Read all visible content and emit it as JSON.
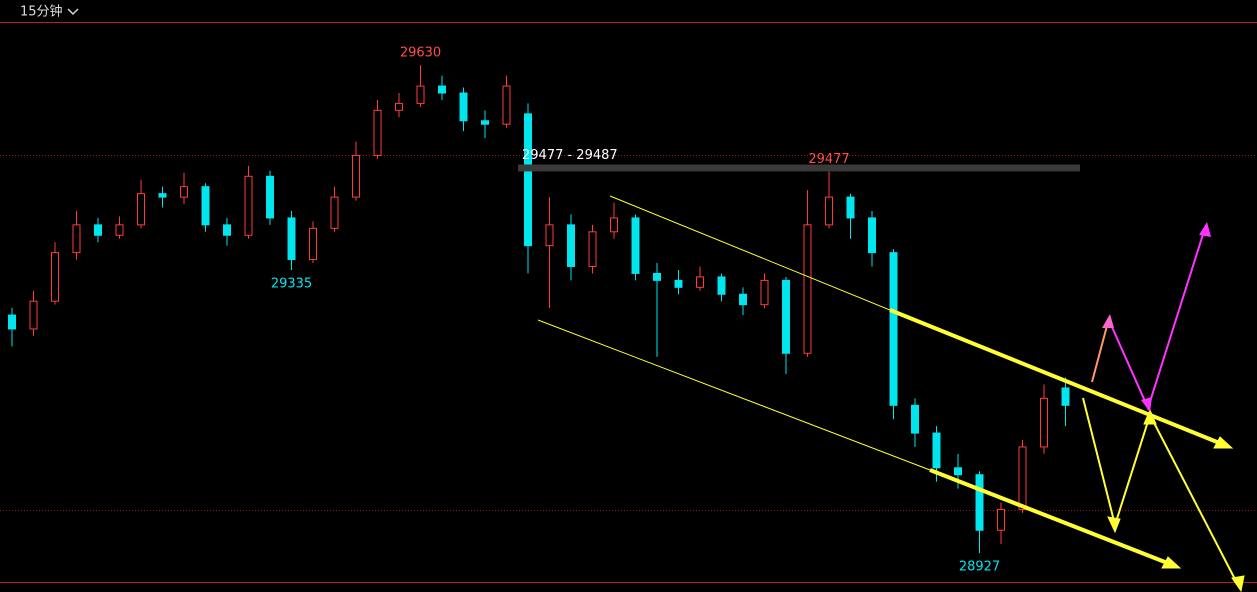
{
  "header": {
    "period": "15分钟"
  },
  "chart_data": {
    "type": "candlestick",
    "up_color": "#ff3b3b",
    "down_color": "#00e5ee",
    "ylim": [
      28871,
      29724
    ],
    "open": [
      29270,
      29250,
      29290,
      29360,
      29400,
      29385,
      29400,
      29445,
      29440,
      29455,
      29400,
      29385,
      29470,
      29410,
      29350,
      29395,
      29440,
      29500,
      29565,
      29575,
      29600,
      29590,
      29550,
      29545,
      29560,
      29370,
      29400,
      29340,
      29390,
      29410,
      29330,
      29320,
      29310,
      29325,
      29300,
      29285,
      29320,
      29215,
      29400,
      29440,
      29410,
      29360,
      29140,
      29100,
      29050,
      29040,
      28960,
      28990,
      29080,
      29165
    ],
    "high": [
      29280,
      29305,
      29375,
      29420,
      29410,
      29412,
      29465,
      29455,
      29475,
      29460,
      29410,
      29485,
      29478,
      29420,
      29405,
      29455,
      29520,
      29580,
      29590,
      29630,
      29615,
      29598,
      29565,
      29615,
      29575,
      29440,
      29415,
      29400,
      29432,
      29415,
      29345,
      29335,
      29340,
      29330,
      29310,
      29330,
      29325,
      29450,
      29477,
      29445,
      29420,
      29365,
      29150,
      29110,
      29070,
      29045,
      29000,
      29090,
      29170,
      29180
    ],
    "low": [
      29225,
      29240,
      29285,
      29350,
      29375,
      29380,
      29395,
      29425,
      29430,
      29390,
      29370,
      29380,
      29400,
      29335,
      29345,
      29390,
      29435,
      29495,
      29555,
      29570,
      29580,
      29535,
      29525,
      29540,
      29330,
      29280,
      29320,
      29330,
      29380,
      29320,
      29210,
      29300,
      29305,
      29290,
      29270,
      29280,
      29185,
      29210,
      29395,
      29380,
      29340,
      29120,
      29080,
      29030,
      29020,
      28927,
      28940,
      28985,
      29070,
      29110
    ],
    "close": [
      29250,
      29290,
      29360,
      29400,
      29385,
      29400,
      29445,
      29440,
      29455,
      29400,
      29385,
      29470,
      29410,
      29350,
      29395,
      29440,
      29500,
      29565,
      29575,
      29600,
      29590,
      29550,
      29545,
      29600,
      29370,
      29400,
      29340,
      29390,
      29410,
      29330,
      29320,
      29310,
      29325,
      29300,
      29285,
      29320,
      29215,
      29400,
      29440,
      29410,
      29360,
      29140,
      29100,
      29050,
      29040,
      28960,
      28990,
      29080,
      29150,
      29140
    ],
    "annotations": [
      {
        "text": "29630",
        "value": 29630,
        "index": 19,
        "color": "#ff4d4d"
      },
      {
        "text": "29335",
        "value": 29335,
        "index": 13,
        "color": "#00e5ee"
      },
      {
        "text": "29477",
        "value": 29477,
        "index": 38,
        "color": "#ff4d4d"
      },
      {
        "text": "28927",
        "value": 28927,
        "index": 45,
        "color": "#00e5ee"
      }
    ],
    "zone": [
      29477,
      29487
    ],
    "zone_label": "29477 - 29487"
  }
}
